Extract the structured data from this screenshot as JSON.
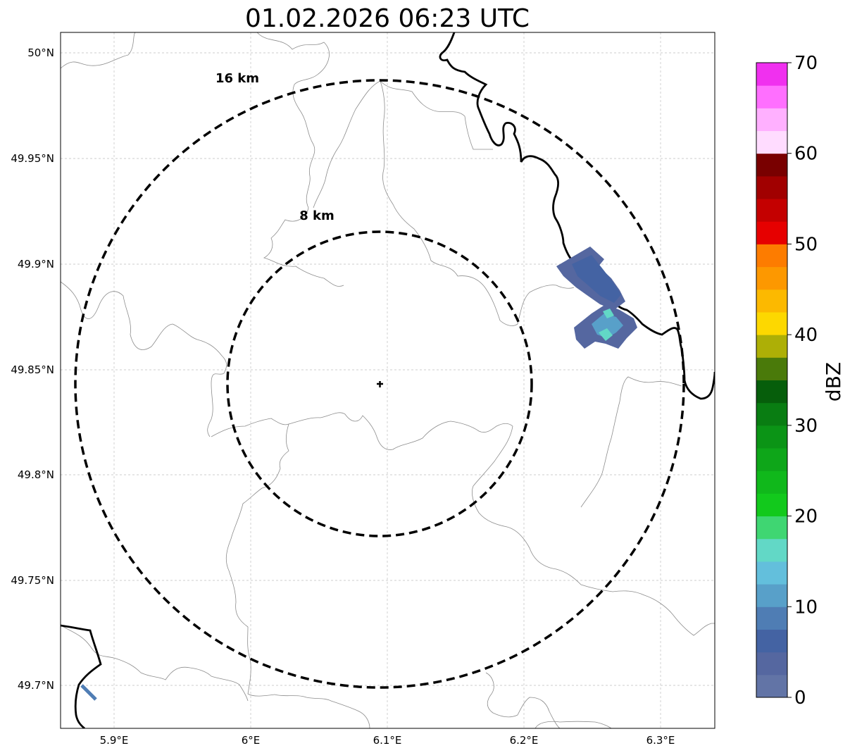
{
  "title": "01.02.2026 06:23 UTC",
  "map": {
    "lon_ticks": [
      "5.9°E",
      "6°E",
      "6.1°E",
      "6.2°E",
      "6.3°E"
    ],
    "lat_ticks": [
      "50°N",
      "49.95°N",
      "49.9°N",
      "49.85°N",
      "49.8°N",
      "49.75°N",
      "49.7°N"
    ],
    "rings": [
      {
        "label": "16 km",
        "radius_km": 16
      },
      {
        "label": "8 km",
        "radius_km": 8
      }
    ],
    "radar_center": {
      "lon": 6.095,
      "lat": 49.843
    }
  },
  "colorbar": {
    "label": "dBZ",
    "ticks": [
      "0",
      "10",
      "20",
      "30",
      "40",
      "50",
      "60",
      "70"
    ],
    "range": [
      0,
      70
    ],
    "step": 2.5,
    "colors": [
      "#6274a6",
      "#5567a0",
      "#4463a3",
      "#4f7db4",
      "#58a0c9",
      "#63bfdc",
      "#62d8c6",
      "#3fd672",
      "#12c91c",
      "#10b81b",
      "#0ea619",
      "#0b9416",
      "#097d12",
      "#065e0b",
      "#4a7a0a",
      "#adaf06",
      "#fdd800",
      "#fcb900",
      "#fd9800",
      "#fd7c00",
      "#e60000",
      "#c40000",
      "#a10000",
      "#790000",
      "#ffdcff",
      "#ffb0ff",
      "#ff6fff",
      "#f030ef"
    ]
  }
}
